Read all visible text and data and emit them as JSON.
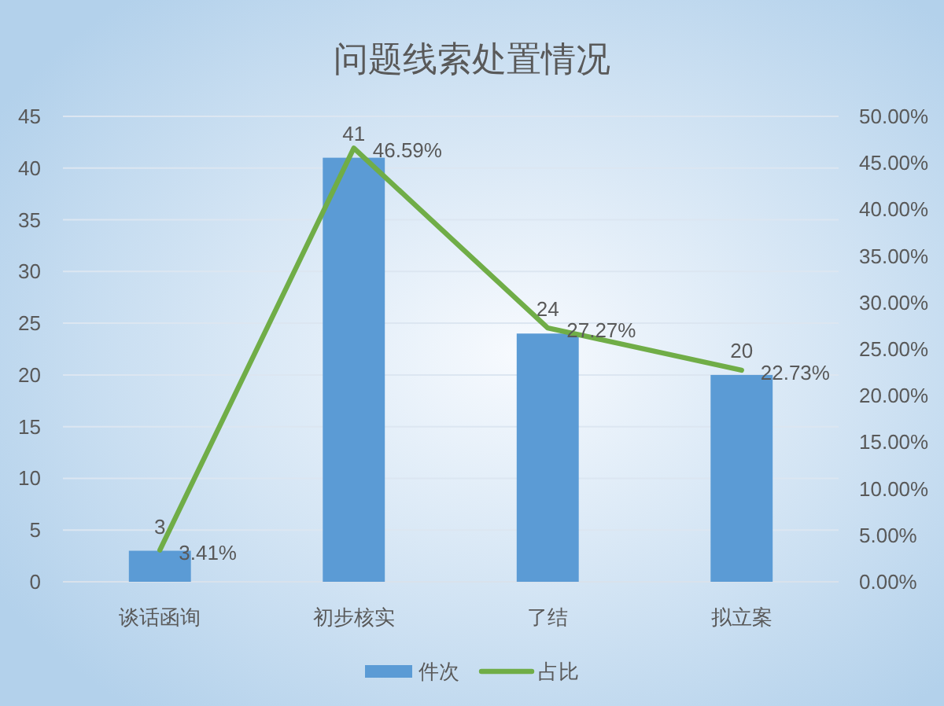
{
  "chart_data": {
    "type": "bar",
    "title": "问题线索处置情况",
    "categories": [
      "谈话函询",
      "初步核实",
      "了结",
      "拟立案"
    ],
    "series": [
      {
        "name": "件次",
        "color": "#5b9bd5",
        "values": [
          3,
          41,
          24,
          20
        ],
        "value_labels": [
          "3",
          "41",
          "24",
          "20"
        ]
      },
      {
        "name": "占比",
        "type": "line",
        "axis": "y2",
        "color": "#70ad47",
        "values": [
          3.41,
          46.59,
          27.27,
          22.73
        ],
        "value_labels": [
          "3.41%",
          "46.59%",
          "27.27%",
          "22.73%"
        ]
      }
    ],
    "ylim": [
      0,
      45
    ],
    "yticks": [
      0,
      5,
      10,
      15,
      20,
      25,
      30,
      35,
      40,
      45
    ],
    "y2lim": [
      0,
      50
    ],
    "y2ticks": [
      {
        "value": 0,
        "label": "0.00%"
      },
      {
        "value": 5,
        "label": "5.00%"
      },
      {
        "value": 10,
        "label": "10.00%"
      },
      {
        "value": 15,
        "label": "15.00%"
      },
      {
        "value": 20,
        "label": "20.00%"
      },
      {
        "value": 25,
        "label": "25.00%"
      },
      {
        "value": 30,
        "label": "30.00%"
      },
      {
        "value": 35,
        "label": "35.00%"
      },
      {
        "value": 40,
        "label": "40.00%"
      },
      {
        "value": 45,
        "label": "45.00%"
      },
      {
        "value": 50,
        "label": "50.00%"
      }
    ],
    "grid": "y",
    "legend": "bottom",
    "marker": "none",
    "line_style": "solid"
  }
}
